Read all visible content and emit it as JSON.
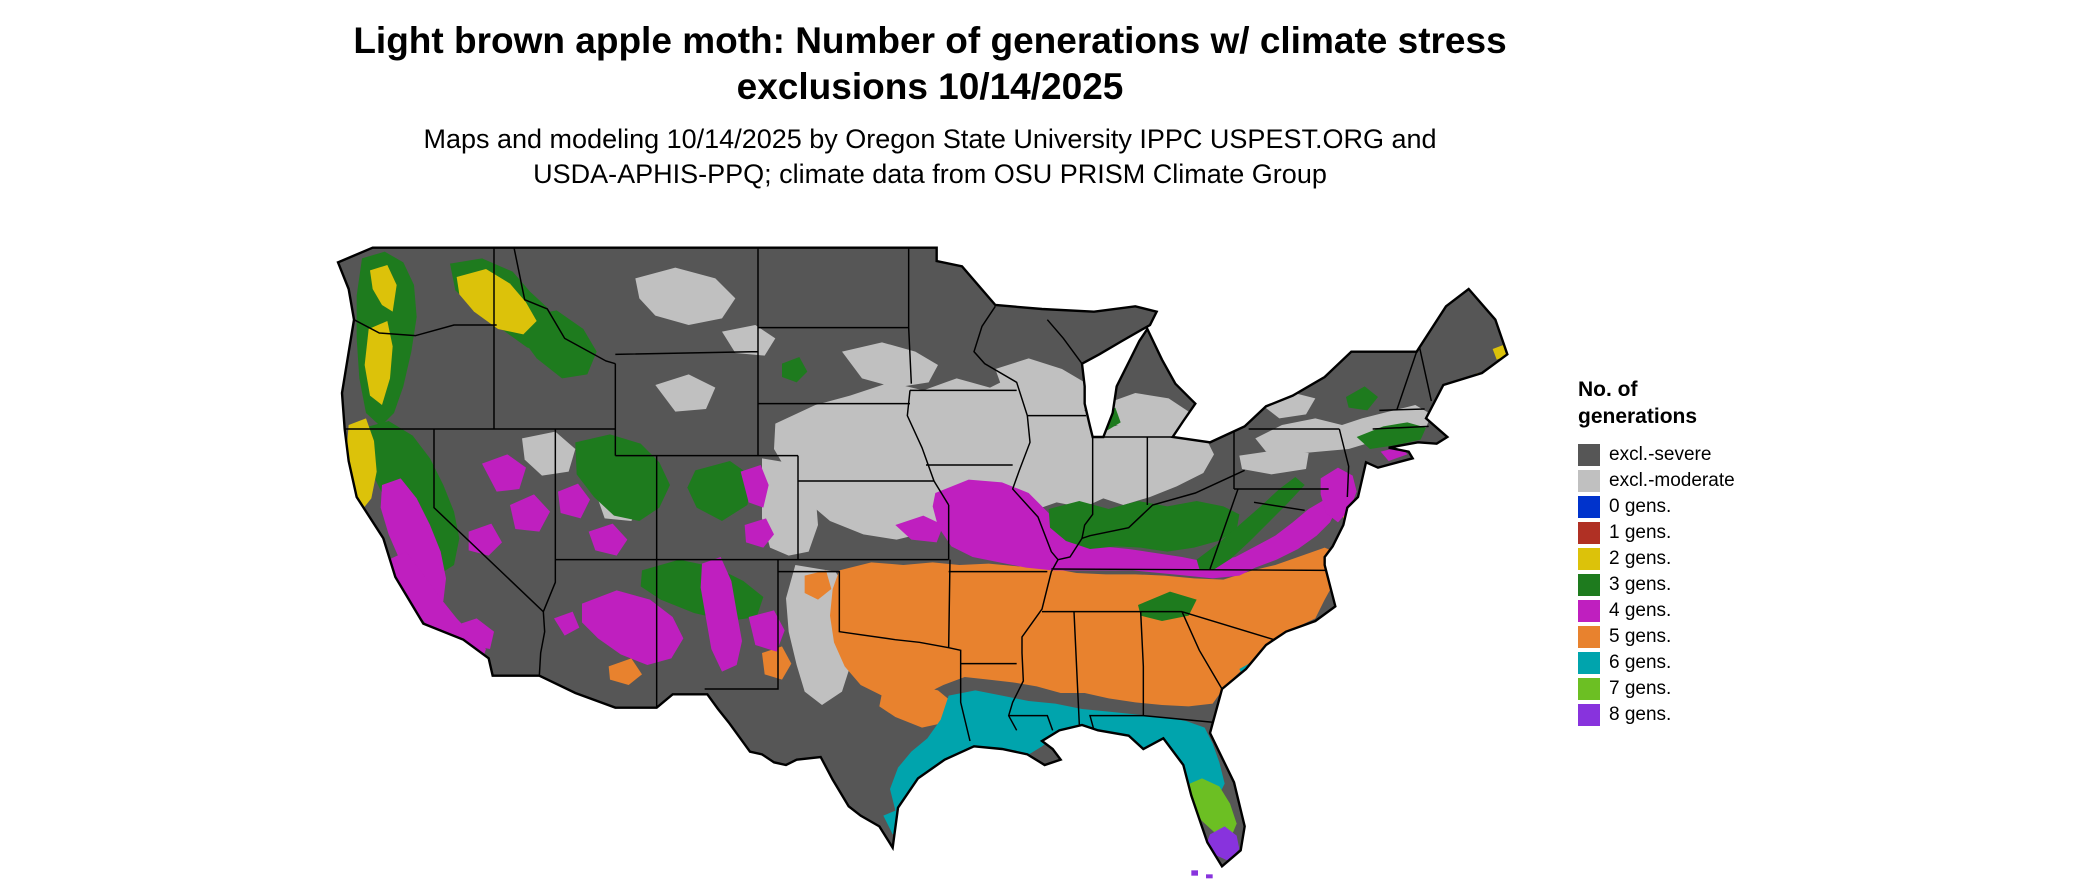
{
  "title": {
    "line1": "Light brown apple moth: Number of generations w/ climate stress",
    "line2": "exclusions 10/14/2025"
  },
  "subtitle": {
    "line1": "Maps and modeling 10/14/2025 by Oregon State University IPPC USPEST.ORG and",
    "line2": "USDA-APHIS-PPQ; climate data from OSU PRISM Climate Group"
  },
  "legend": {
    "title_line1": "No. of",
    "title_line2": "generations",
    "items": [
      {
        "label": "excl.-severe",
        "color": "#565656"
      },
      {
        "label": "excl.-moderate",
        "color": "#c0c0c0"
      },
      {
        "label": "0 gens.",
        "color": "#0033cc"
      },
      {
        "label": "1 gens.",
        "color": "#b03024"
      },
      {
        "label": "2 gens.",
        "color": "#dcc20a"
      },
      {
        "label": "3 gens.",
        "color": "#1e7b1e"
      },
      {
        "label": "4 gens.",
        "color": "#bf1fbf"
      },
      {
        "label": "5 gens.",
        "color": "#e8822e"
      },
      {
        "label": "6 gens.",
        "color": "#00a4ad"
      },
      {
        "label": "7 gens.",
        "color": "#6cbf23"
      },
      {
        "label": "8 gens.",
        "color": "#8833dd"
      }
    ]
  },
  "map": {
    "region": "Continental United States",
    "border_color": "#000000",
    "background": "#ffffff"
  }
}
